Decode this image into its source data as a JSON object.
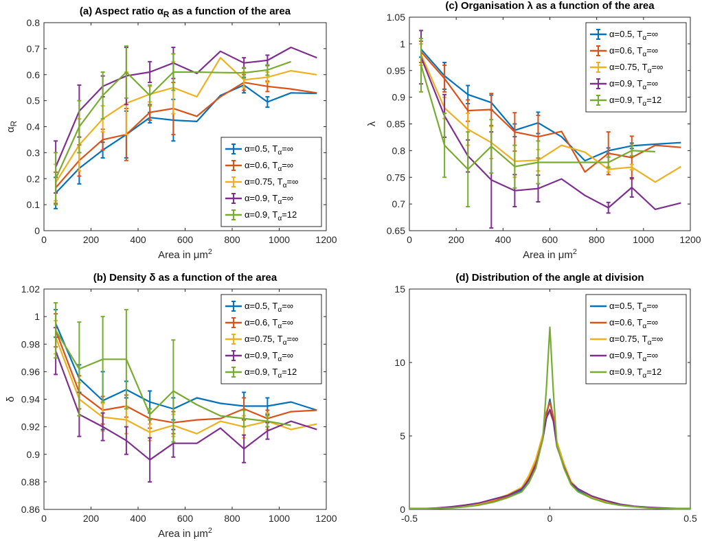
{
  "series_style": [
    {
      "label": "α=0.5, T_α=∞",
      "color": "#0072BD"
    },
    {
      "label": "α=0.6, T_α=∞",
      "color": "#D95319"
    },
    {
      "label": "α=0.75, T_α=∞",
      "color": "#EDB120"
    },
    {
      "label": "α=0.9, T_α=∞",
      "color": "#7E2F8E"
    },
    {
      "label": "α=0.9, T_α=12",
      "color": "#77AC30"
    }
  ],
  "chart_data": [
    {
      "id": "a",
      "type": "line",
      "title": "(a) Aspect ratio α_R as a function of the area",
      "xlabel": "Area in μm²",
      "ylabel": "α_R",
      "xlim": [
        0,
        1200
      ],
      "ylim": [
        0,
        0.8
      ],
      "xticks": [
        0,
        200,
        400,
        600,
        800,
        1000,
        1200
      ],
      "yticks": [
        0,
        0.1,
        0.2,
        0.3,
        0.4,
        0.5,
        0.6,
        0.7,
        0.8
      ],
      "ytick_labels": [
        "0",
        "0.1",
        "0.2",
        "0.3",
        "0.4",
        "0.5",
        "0.6",
        "0.7",
        "0.8"
      ],
      "legend_position": "bottom-right",
      "series": [
        {
          "name": "α=0.5, T_α=∞",
          "x": [
            50,
            150,
            250,
            350,
            450,
            550,
            650,
            750,
            850,
            950,
            1050,
            1160
          ],
          "y": [
            0.145,
            0.24,
            0.31,
            0.37,
            0.435,
            0.425,
            0.42,
            0.52,
            0.56,
            0.495,
            0.53,
            0.528
          ],
          "err": [
            0.06,
            0.06,
            0.03,
            0.09,
            0.02,
            0.08,
            0,
            0,
            0.03,
            0.02,
            0,
            0
          ]
        },
        {
          "name": "α=0.6, T_α=∞",
          "x": [
            50,
            150,
            250,
            350,
            450,
            550,
            650,
            750,
            850,
            950,
            1050,
            1160
          ],
          "y": [
            0.165,
            0.27,
            0.35,
            0.37,
            0.455,
            0.47,
            0.44,
            0.515,
            0.57,
            0.555,
            0.545,
            0.53
          ],
          "err": [
            0.06,
            0.06,
            0.04,
            0.1,
            0.03,
            0.1,
            0,
            0,
            0.03,
            0.02,
            0,
            0
          ]
        },
        {
          "name": "α=0.75, T_α=∞",
          "x": [
            50,
            150,
            250,
            350,
            450,
            550,
            650,
            750,
            850,
            950,
            1050,
            1160
          ],
          "y": [
            0.185,
            0.33,
            0.43,
            0.49,
            0.525,
            0.55,
            0.515,
            0.665,
            0.58,
            0.59,
            0.615,
            0.6
          ],
          "err": [
            0.07,
            0.1,
            0.05,
            0.12,
            0.03,
            0.1,
            0,
            0,
            0.03,
            0.02,
            0,
            0
          ]
        },
        {
          "name": "α=0.9, T_α=∞",
          "x": [
            50,
            150,
            250,
            350,
            450,
            550,
            650,
            750,
            850,
            950,
            1050,
            1160
          ],
          "y": [
            0.245,
            0.46,
            0.555,
            0.595,
            0.61,
            0.645,
            0.605,
            0.69,
            0.645,
            0.655,
            0.705,
            0.665
          ],
          "err": [
            0.1,
            0.1,
            0.04,
            0.11,
            0.04,
            0.06,
            0,
            0,
            0.02,
            0.02,
            0,
            0
          ]
        },
        {
          "name": "α=0.9, T_α=12",
          "x": [
            50,
            150,
            250,
            350,
            450,
            550,
            650,
            750,
            850,
            950,
            1050
          ],
          "y": [
            0.2,
            0.4,
            0.52,
            0.61,
            0.52,
            0.61,
            0.61,
            0.608,
            0.607,
            0.618,
            0.65
          ],
          "err": [
            0.1,
            0.1,
            0.09,
            0.1,
            0.04,
            0.07,
            0,
            0,
            0.02,
            0.02,
            0
          ]
        }
      ]
    },
    {
      "id": "b",
      "type": "line",
      "title": "(b) Density δ as a function of the area",
      "xlabel": "Area in μm²",
      "ylabel": "δ",
      "xlim": [
        0,
        1200
      ],
      "ylim": [
        0.86,
        1.02
      ],
      "xticks": [
        0,
        200,
        400,
        600,
        800,
        1000,
        1200
      ],
      "yticks": [
        0.86,
        0.88,
        0.9,
        0.92,
        0.94,
        0.96,
        0.98,
        1,
        1.02
      ],
      "ytick_labels": [
        "0.86",
        "0.88",
        "0.9",
        "0.92",
        "0.94",
        "0.96",
        "0.98",
        "1",
        "1.02"
      ],
      "legend_position": "top-right",
      "series": [
        {
          "name": "α=0.5, T_α=∞",
          "x": [
            50,
            150,
            250,
            350,
            450,
            550,
            650,
            750,
            850,
            950,
            1050,
            1160
          ],
          "y": [
            0.995,
            0.955,
            0.939,
            0.947,
            0.938,
            0.933,
            0.941,
            0.937,
            0.935,
            0.935,
            0.938,
            0.932
          ],
          "err": [
            0.01,
            0.01,
            0.021,
            0.006,
            0.008,
            0.008,
            0,
            0,
            0.01,
            0.006,
            0,
            0
          ]
        },
        {
          "name": "α=0.6, T_α=∞",
          "x": [
            50,
            150,
            250,
            350,
            450,
            550,
            650,
            750,
            850,
            950,
            1050,
            1160
          ],
          "y": [
            0.99,
            0.945,
            0.932,
            0.935,
            0.926,
            0.923,
            0.925,
            0.926,
            0.933,
            0.926,
            0.931,
            0.932
          ],
          "err": [
            0.012,
            0.012,
            0.01,
            0.008,
            0.007,
            0.008,
            0,
            0,
            0.008,
            0.006,
            0,
            0
          ]
        },
        {
          "name": "α=0.75, T_α=∞",
          "x": [
            50,
            150,
            250,
            350,
            450,
            550,
            650,
            750,
            850,
            950,
            1050,
            1160
          ],
          "y": [
            0.985,
            0.94,
            0.927,
            0.925,
            0.916,
            0.921,
            0.915,
            0.924,
            0.92,
            0.924,
            0.918,
            0.922
          ],
          "err": [
            0.012,
            0.012,
            0.01,
            0.01,
            0.006,
            0.008,
            0,
            0,
            0.008,
            0.006,
            0,
            0
          ]
        },
        {
          "name": "α=0.9, T_α=∞",
          "x": [
            50,
            150,
            250,
            350,
            450,
            550,
            650,
            750,
            850,
            950,
            1050,
            1160
          ],
          "y": [
            0.975,
            0.929,
            0.92,
            0.91,
            0.896,
            0.908,
            0.908,
            0.919,
            0.904,
            0.917,
            0.924,
            0.918
          ],
          "err": [
            0.017,
            0.016,
            0.01,
            0.01,
            0.016,
            0.01,
            0,
            0,
            0.01,
            0.006,
            0,
            0
          ]
        },
        {
          "name": "α=0.9, T_α=12",
          "x": [
            50,
            150,
            250,
            350,
            450,
            550,
            650,
            750,
            850,
            950,
            1050
          ],
          "y": [
            0.99,
            0.962,
            0.969,
            0.969,
            0.929,
            0.946,
            0.936,
            0.928,
            0.926,
            0.924,
            0.921
          ],
          "err": [
            0.02,
            0.034,
            0.031,
            0.036,
            0.004,
            0.037,
            0,
            0,
            0.006,
            0.004,
            0
          ]
        }
      ]
    },
    {
      "id": "c",
      "type": "line",
      "title": "(c) Organisation λ as a function of the area",
      "xlabel": "Area in μm²",
      "ylabel": "λ",
      "xlim": [
        0,
        1200
      ],
      "ylim": [
        0.65,
        1.05
      ],
      "xticks": [
        0,
        200,
        400,
        600,
        800,
        1000,
        1200
      ],
      "yticks": [
        0.65,
        0.7,
        0.75,
        0.8,
        0.85,
        0.9,
        0.95,
        1,
        1.05
      ],
      "ytick_labels": [
        "0.65",
        "0.7",
        "0.75",
        "0.8",
        "0.85",
        "0.9",
        "0.95",
        "1",
        "1.05"
      ],
      "legend_position": "top-right",
      "series": [
        {
          "name": "α=0.5, T_α=∞",
          "x": [
            50,
            150,
            250,
            350,
            450,
            550,
            650,
            750,
            850,
            950,
            1050,
            1160
          ],
          "y": [
            0.99,
            0.94,
            0.905,
            0.89,
            0.838,
            0.852,
            0.826,
            0.781,
            0.8,
            0.809,
            0.812,
            0.815
          ],
          "err": [
            0.015,
            0.025,
            0.017,
            0.014,
            0.012,
            0.02,
            0,
            0,
            0.005,
            0.005,
            0,
            0
          ]
        },
        {
          "name": "α=0.6, T_α=∞",
          "x": [
            50,
            150,
            250,
            350,
            450,
            550,
            650,
            750,
            850,
            950,
            1050,
            1160
          ],
          "y": [
            0.985,
            0.935,
            0.875,
            0.877,
            0.835,
            0.826,
            0.836,
            0.76,
            0.795,
            0.787,
            0.81,
            0.806
          ],
          "err": [
            0.02,
            0.025,
            0.02,
            0.03,
            0.036,
            0.04,
            0,
            0,
            0.04,
            0.04,
            0,
            0
          ]
        },
        {
          "name": "α=0.75, T_α=∞",
          "x": [
            50,
            150,
            250,
            350,
            450,
            550,
            650,
            750,
            850,
            950,
            1050,
            1160
          ],
          "y": [
            0.98,
            0.88,
            0.84,
            0.815,
            0.78,
            0.782,
            0.81,
            0.797,
            0.765,
            0.769,
            0.741,
            0.77
          ],
          "err": [
            0.02,
            0.02,
            0.03,
            0.03,
            0.03,
            0.02,
            0,
            0,
            0.005,
            0.005,
            0,
            0
          ]
        },
        {
          "name": "α=0.9, T_α=∞",
          "x": [
            50,
            150,
            250,
            350,
            450,
            550,
            650,
            750,
            850,
            950,
            1050,
            1160
          ],
          "y": [
            0.975,
            0.865,
            0.79,
            0.745,
            0.725,
            0.729,
            0.747,
            0.716,
            0.693,
            0.731,
            0.69,
            0.702
          ],
          "err": [
            0.05,
            0.04,
            0.03,
            0.09,
            0.03,
            0.025,
            0,
            0,
            0.01,
            0.018,
            0,
            0
          ]
        },
        {
          "name": "α=0.9, T_α=12",
          "x": [
            50,
            150,
            250,
            350,
            450,
            550,
            650,
            750,
            850,
            950,
            1050
          ],
          "y": [
            0.96,
            0.81,
            0.765,
            0.808,
            0.77,
            0.778,
            0.778,
            0.778,
            0.778,
            0.8,
            0.798
          ],
          "err": [
            0.05,
            0.06,
            0.07,
            0.05,
            0.04,
            0.04,
            0,
            0,
            0.01,
            0.01,
            0
          ]
        }
      ]
    },
    {
      "id": "d",
      "type": "line",
      "title": "(d) Distribution of the angle at division",
      "xlabel": "",
      "ylabel": "",
      "xlim": [
        -0.5,
        0.5
      ],
      "ylim": [
        0,
        15
      ],
      "xticks": [
        -0.5,
        0,
        0.5
      ],
      "xtick_labels": [
        "-0.5",
        "0",
        "0.5"
      ],
      "yticks": [
        0,
        5,
        10,
        15
      ],
      "ytick_labels": [
        "0",
        "5",
        "10",
        "15"
      ],
      "legend_position": "top-right",
      "x": [
        -0.5,
        -0.45,
        -0.4,
        -0.35,
        -0.3,
        -0.25,
        -0.2,
        -0.15,
        -0.1,
        -0.075,
        -0.05,
        -0.025,
        -0.0125,
        0,
        0.0125,
        0.025,
        0.05,
        0.075,
        0.1,
        0.15,
        0.2,
        0.25,
        0.3,
        0.35,
        0.4,
        0.45,
        0.5
      ],
      "series": [
        {
          "name": "α=0.5, T_α=∞",
          "y": [
            0.05,
            0.05,
            0.08,
            0.12,
            0.2,
            0.35,
            0.55,
            0.85,
            1.3,
            2.0,
            3.1,
            4.9,
            6.4,
            7.5,
            6.2,
            4.5,
            3.0,
            1.8,
            1.3,
            0.8,
            0.5,
            0.3,
            0.2,
            0.12,
            0.08,
            0.05,
            0.05
          ]
        },
        {
          "name": "α=0.6, T_α=∞",
          "y": [
            0.05,
            0.05,
            0.08,
            0.12,
            0.22,
            0.38,
            0.6,
            0.9,
            1.4,
            2.1,
            3.2,
            5.0,
            6.6,
            7.3,
            6.3,
            4.6,
            3.1,
            1.9,
            1.4,
            0.85,
            0.55,
            0.32,
            0.2,
            0.12,
            0.08,
            0.05,
            0.05
          ]
        },
        {
          "name": "α=0.75, T_α=∞",
          "y": [
            0.05,
            0.06,
            0.1,
            0.15,
            0.25,
            0.4,
            0.65,
            1.0,
            1.5,
            2.3,
            3.4,
            5.1,
            6.3,
            6.6,
            6.0,
            4.6,
            3.1,
            1.9,
            1.4,
            0.85,
            0.55,
            0.32,
            0.2,
            0.12,
            0.08,
            0.05,
            0.05
          ]
        },
        {
          "name": "α=0.9, T_α=∞",
          "y": [
            0.05,
            0.05,
            0.1,
            0.18,
            0.3,
            0.45,
            0.7,
            0.95,
            1.4,
            2.0,
            3.0,
            4.8,
            6.2,
            6.8,
            6.0,
            4.3,
            2.9,
            1.8,
            1.4,
            0.9,
            0.6,
            0.35,
            0.22,
            0.15,
            0.1,
            0.06,
            0.05
          ]
        },
        {
          "name": "α=0.9, T_α=12",
          "y": [
            0.05,
            0.05,
            0.07,
            0.1,
            0.18,
            0.3,
            0.5,
            0.8,
            1.2,
            1.8,
            2.8,
            4.8,
            8.2,
            12.4,
            8.0,
            4.4,
            2.8,
            1.7,
            1.2,
            0.75,
            0.45,
            0.28,
            0.18,
            0.1,
            0.06,
            0.04,
            0.04
          ]
        }
      ]
    }
  ]
}
